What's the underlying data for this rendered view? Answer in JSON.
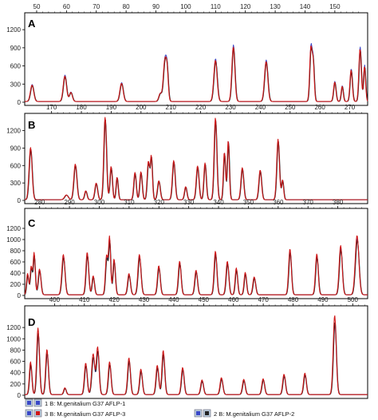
{
  "chart_data": [
    {
      "panel": "A",
      "type": "line",
      "x_ticks": [
        50,
        60,
        70,
        80,
        90,
        100,
        110,
        120,
        130,
        140,
        150
      ],
      "xlim": [
        46,
        161
      ],
      "ylim": [
        0,
        1400
      ],
      "y_ticks": [
        0,
        300,
        600,
        900,
        1200
      ],
      "peaks": [
        [
          48.5,
          270,
          0.55
        ],
        [
          59.5,
          420,
          0.55
        ],
        [
          61.5,
          150,
          0.5
        ],
        [
          78.5,
          300,
          0.55
        ],
        [
          91.5,
          130,
          0.5
        ],
        [
          93.0,
          640,
          0.5
        ],
        [
          93.8,
          450,
          0.4
        ],
        [
          110.0,
          680,
          0.55
        ],
        [
          116.0,
          900,
          0.5
        ],
        [
          127.0,
          660,
          0.55
        ],
        [
          142.0,
          870,
          0.4
        ],
        [
          142.8,
          600,
          0.35
        ],
        [
          150.0,
          320,
          0.4
        ],
        [
          152.5,
          250,
          0.35
        ],
        [
          155.5,
          520,
          0.4
        ],
        [
          158.5,
          870,
          0.4
        ],
        [
          160.0,
          580,
          0.35
        ]
      ],
      "series": [
        {
          "name": "1 B: M.genitalium G37 AFLP-1",
          "scale": 1.04
        },
        {
          "name": "2 B: M.genitalium G37 AFLP-2",
          "scale": 0.98
        },
        {
          "name": "3 B: M.genitalium G37 AFLP-3",
          "scale": 1.0
        }
      ]
    },
    {
      "panel": "B",
      "type": "line",
      "x_ticks": [
        170,
        180,
        190,
        200,
        210,
        220,
        230,
        240,
        250,
        260,
        270
      ],
      "xlim": [
        161,
        276
      ],
      "ylim": [
        0,
        1400
      ],
      "y_ticks": [
        0,
        300,
        600,
        900,
        1200
      ],
      "peaks": [
        [
          163.0,
          880,
          0.5
        ],
        [
          175.0,
          80,
          0.6
        ],
        [
          178.0,
          600,
          0.5
        ],
        [
          181.5,
          150,
          0.4
        ],
        [
          185.0,
          280,
          0.45
        ],
        [
          188.0,
          1400,
          0.45
        ],
        [
          190.0,
          560,
          0.4
        ],
        [
          192.0,
          380,
          0.35
        ],
        [
          198.0,
          460,
          0.4
        ],
        [
          200.0,
          470,
          0.4
        ],
        [
          202.5,
          640,
          0.4
        ],
        [
          203.5,
          720,
          0.35
        ],
        [
          206.0,
          320,
          0.45
        ],
        [
          211.0,
          660,
          0.45
        ],
        [
          215.0,
          220,
          0.4
        ],
        [
          219.0,
          570,
          0.45
        ],
        [
          221.5,
          620,
          0.4
        ],
        [
          225.0,
          1380,
          0.45
        ],
        [
          228.0,
          800,
          0.35
        ],
        [
          229.3,
          1000,
          0.35
        ],
        [
          234.0,
          540,
          0.45
        ],
        [
          240.0,
          500,
          0.45
        ],
        [
          246.0,
          1020,
          0.45
        ],
        [
          247.5,
          330,
          0.35
        ]
      ],
      "series": [
        {
          "name": "1 B: M.genitalium G37 AFLP-1",
          "scale": 1.0
        },
        {
          "name": "2 B: M.genitalium G37 AFLP-2",
          "scale": 0.98
        },
        {
          "name": "3 B: M.genitalium G37 AFLP-3",
          "scale": 1.02
        }
      ]
    },
    {
      "panel": "C",
      "type": "line",
      "x_ticks": [
        280,
        290,
        300,
        310,
        320,
        330,
        340,
        350,
        360,
        370,
        380
      ],
      "xlim": [
        275,
        390
      ],
      "ylim": [
        0,
        1400
      ],
      "y_ticks": [
        0,
        200,
        400,
        600,
        800,
        1000,
        1200
      ],
      "peaks": [
        [
          276.0,
          380,
          0.35
        ],
        [
          277.2,
          500,
          0.35
        ],
        [
          278.2,
          750,
          0.35
        ],
        [
          280.0,
          460,
          0.45
        ],
        [
          288.0,
          720,
          0.5
        ],
        [
          296.0,
          760,
          0.45
        ],
        [
          298.0,
          340,
          0.4
        ],
        [
          302.5,
          700,
          0.4
        ],
        [
          303.5,
          1020,
          0.35
        ],
        [
          305.0,
          640,
          0.4
        ],
        [
          310.0,
          380,
          0.45
        ],
        [
          313.5,
          720,
          0.5
        ],
        [
          320.0,
          520,
          0.45
        ],
        [
          327.0,
          600,
          0.45
        ],
        [
          332.5,
          440,
          0.45
        ],
        [
          339.0,
          780,
          0.45
        ],
        [
          343.0,
          600,
          0.45
        ],
        [
          346.0,
          480,
          0.4
        ],
        [
          349.0,
          400,
          0.4
        ],
        [
          352.0,
          320,
          0.45
        ],
        [
          364.0,
          820,
          0.45
        ],
        [
          373.0,
          730,
          0.45
        ],
        [
          381.0,
          880,
          0.5
        ],
        [
          386.5,
          1060,
          0.6
        ]
      ],
      "series": [
        {
          "name": "1 B: M.genitalium G37 AFLP-1",
          "scale": 0.95
        },
        {
          "name": "2 B: M.genitalium G37 AFLP-2",
          "scale": 0.92
        },
        {
          "name": "3 B: M.genitalium G37 AFLP-3",
          "scale": 1.0
        }
      ]
    },
    {
      "panel": "D",
      "type": "line",
      "x_ticks": [
        400,
        410,
        420,
        430,
        440,
        450,
        460,
        470,
        480,
        490,
        500
      ],
      "xlim": [
        390,
        505
      ],
      "ylim": [
        0,
        1400
      ],
      "y_ticks": [
        0,
        200,
        400,
        600,
        800,
        1000,
        1200
      ],
      "peaks": [
        [
          392.0,
          580,
          0.4
        ],
        [
          394.5,
          1180,
          0.45
        ],
        [
          397.5,
          800,
          0.45
        ],
        [
          403.5,
          120,
          0.4
        ],
        [
          410.5,
          560,
          0.45
        ],
        [
          413.0,
          720,
          0.5
        ],
        [
          414.5,
          840,
          0.45
        ],
        [
          418.5,
          580,
          0.45
        ],
        [
          425.0,
          650,
          0.45
        ],
        [
          429.0,
          450,
          0.45
        ],
        [
          434.5,
          520,
          0.45
        ],
        [
          436.5,
          780,
          0.45
        ],
        [
          443.0,
          480,
          0.45
        ],
        [
          449.5,
          260,
          0.45
        ],
        [
          456.0,
          300,
          0.45
        ],
        [
          463.5,
          270,
          0.45
        ],
        [
          470.0,
          280,
          0.45
        ],
        [
          477.0,
          360,
          0.45
        ],
        [
          484.0,
          380,
          0.45
        ],
        [
          494.0,
          1400,
          0.5
        ]
      ],
      "series": [
        {
          "name": "1 B: M.genitalium G37 AFLP-1",
          "scale": 0.9
        },
        {
          "name": "2 B: M.genitalium G37 AFLP-2",
          "scale": 0.92
        },
        {
          "name": "3 B: M.genitalium G37 AFLP-3",
          "scale": 1.0
        }
      ]
    }
  ],
  "colors": {
    "series1": "#3a48c8",
    "series2": "#222222",
    "series3": "#d01818",
    "axis": "#000000"
  },
  "legend": {
    "items": [
      {
        "label": "1 B: M.genitalium G37 AFLP-1"
      },
      {
        "label": "2 B: M.genitalium G37 AFLP-2"
      },
      {
        "label": "3 B: M.genitalium G37 AFLP-3"
      }
    ]
  }
}
